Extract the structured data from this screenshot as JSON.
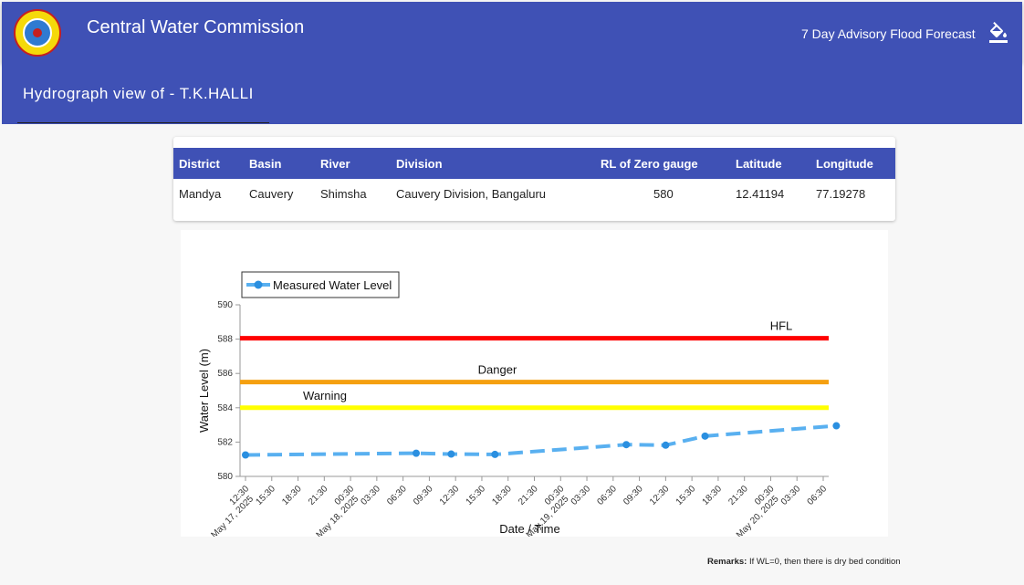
{
  "app": {
    "title": "Central Water Commission",
    "nav_link": "7 Day Advisory Flood Forecast",
    "logo_icon": "cwc-emblem-logo",
    "theme_icon": "paint-bucket-icon",
    "primary_color": "#3f51b5"
  },
  "page": {
    "title": "Hydrograph view of - T.K.HALLI"
  },
  "station": {
    "headers": [
      "District",
      "Basin",
      "River",
      "Division",
      "RL of Zero gauge",
      "Latitude",
      "Longitude"
    ],
    "values": [
      "Mandya",
      "Cauvery",
      "Shimsha",
      "Cauvery Division, Bangaluru",
      "580",
      "12.41194",
      "77.19278"
    ]
  },
  "chart_data": {
    "type": "line",
    "title": "",
    "xlabel": "Date / Time",
    "ylabel": "Water Level (m)",
    "ylim": [
      580,
      590
    ],
    "yticks": [
      580,
      582,
      584,
      586,
      588,
      590
    ],
    "xlim": [
      "2025-05-17 12:30",
      "2025-05-20 06:30"
    ],
    "x_ticks": [
      {
        "t": "2025-05-17 12:30",
        "time": "12:30",
        "date": "May 17, 2025"
      },
      {
        "t": "2025-05-17 15:30",
        "time": "15:30",
        "date": ""
      },
      {
        "t": "2025-05-17 18:30",
        "time": "18:30",
        "date": ""
      },
      {
        "t": "2025-05-17 21:30",
        "time": "21:30",
        "date": ""
      },
      {
        "t": "2025-05-18 00:30",
        "time": "00:30",
        "date": "May 18, 2025"
      },
      {
        "t": "2025-05-18 03:30",
        "time": "03:30",
        "date": ""
      },
      {
        "t": "2025-05-18 06:30",
        "time": "06:30",
        "date": ""
      },
      {
        "t": "2025-05-18 09:30",
        "time": "09:30",
        "date": ""
      },
      {
        "t": "2025-05-18 12:30",
        "time": "12:30",
        "date": ""
      },
      {
        "t": "2025-05-18 15:30",
        "time": "15:30",
        "date": ""
      },
      {
        "t": "2025-05-18 18:30",
        "time": "18:30",
        "date": ""
      },
      {
        "t": "2025-05-18 21:30",
        "time": "21:30",
        "date": ""
      },
      {
        "t": "2025-05-19 00:30",
        "time": "00:30",
        "date": "May 19, 2025"
      },
      {
        "t": "2025-05-19 03:30",
        "time": "03:30",
        "date": ""
      },
      {
        "t": "2025-05-19 06:30",
        "time": "06:30",
        "date": ""
      },
      {
        "t": "2025-05-19 09:30",
        "time": "09:30",
        "date": ""
      },
      {
        "t": "2025-05-19 12:30",
        "time": "12:30",
        "date": ""
      },
      {
        "t": "2025-05-19 15:30",
        "time": "15:30",
        "date": ""
      },
      {
        "t": "2025-05-19 18:30",
        "time": "18:30",
        "date": ""
      },
      {
        "t": "2025-05-19 21:30",
        "time": "21:30",
        "date": ""
      },
      {
        "t": "2025-05-20 00:30",
        "time": "00:30",
        "date": "May 20, 2025"
      },
      {
        "t": "2025-05-20 03:30",
        "time": "03:30",
        "date": ""
      },
      {
        "t": "2025-05-20 06:30",
        "time": "06:30",
        "date": ""
      }
    ],
    "series": [
      {
        "name": "Measured Water Level",
        "color": "#59b0f0",
        "dashed": true,
        "points": [
          {
            "x": "2025-05-17 12:30",
            "y": 581.25
          },
          {
            "x": "2025-05-18 08:00",
            "y": 581.35
          },
          {
            "x": "2025-05-18 12:00",
            "y": 581.3
          },
          {
            "x": "2025-05-18 17:00",
            "y": 581.28
          },
          {
            "x": "2025-05-19 08:00",
            "y": 581.85
          },
          {
            "x": "2025-05-19 12:30",
            "y": 581.82
          },
          {
            "x": "2025-05-19 17:00",
            "y": 582.35
          },
          {
            "x": "2025-05-20 08:00",
            "y": 582.95
          }
        ]
      }
    ],
    "thresholds": [
      {
        "label": "HFL",
        "value": 588.05,
        "color": "#ff0000"
      },
      {
        "label": "Danger",
        "value": 585.5,
        "color": "#f5a010"
      },
      {
        "label": "Warning",
        "value": 584.0,
        "color": "#ffff00"
      }
    ],
    "legend": "top-left"
  },
  "remarks": {
    "label": "Remarks:",
    "text": "If WL=0, then there is dry bed condition"
  }
}
